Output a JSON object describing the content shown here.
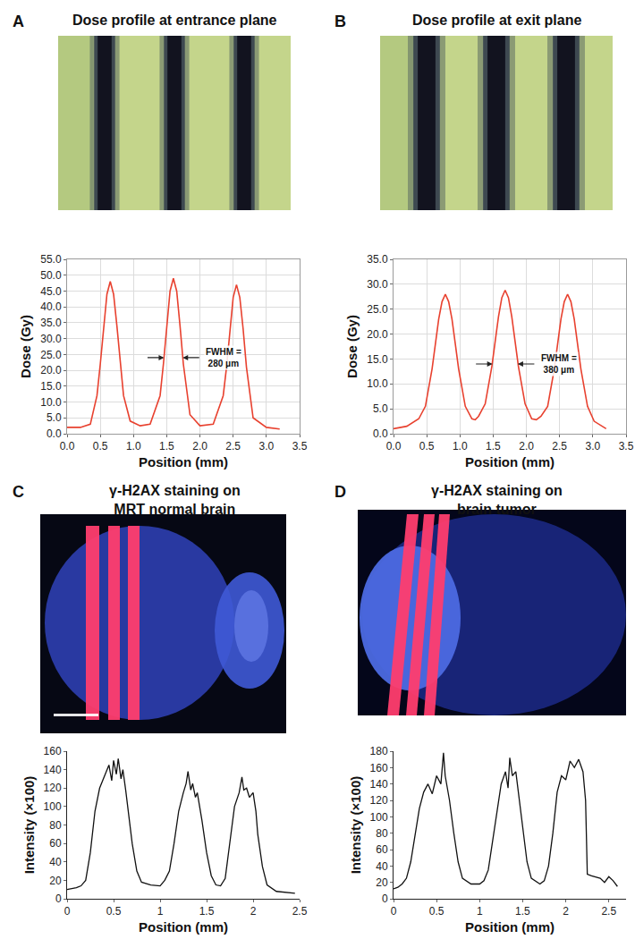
{
  "chart_data": [
    {
      "label": "A",
      "title": [
        "Dose profile at entrance plane"
      ],
      "type": "line",
      "color": "#e8412f",
      "grid": true,
      "xlabel": "Position (mm)",
      "ylabel": "Dose (Gy)",
      "x": [
        0,
        0.2,
        0.35,
        0.45,
        0.5,
        0.55,
        0.6,
        0.65,
        0.7,
        0.75,
        0.8,
        0.85,
        0.95,
        1.1,
        1.25,
        1.4,
        1.45,
        1.5,
        1.55,
        1.6,
        1.65,
        1.7,
        1.75,
        1.85,
        2.0,
        2.2,
        2.35,
        2.4,
        2.45,
        2.5,
        2.55,
        2.6,
        2.65,
        2.7,
        2.8,
        3.0,
        3.2
      ],
      "values": [
        2,
        2,
        3,
        12,
        22,
        34,
        44,
        48,
        44,
        34,
        22,
        12,
        4,
        2.5,
        3,
        12,
        22,
        34,
        45,
        49,
        45,
        34,
        22,
        6,
        2.5,
        3,
        12,
        21,
        33,
        43,
        47,
        43,
        33,
        21,
        5,
        2,
        1.5
      ],
      "xlim": [
        0,
        3.5
      ],
      "xticks": [
        {
          "value": 0,
          "label": "0.0"
        },
        0.5,
        {
          "value": 1,
          "label": "1.0"
        },
        1.5,
        {
          "value": 2,
          "label": "2.0"
        },
        2.5,
        {
          "value": 3,
          "label": "3.0"
        },
        3.5
      ],
      "ylim": [
        0,
        55
      ],
      "yticks": [
        {
          "value": 0,
          "label": "0.0"
        },
        {
          "value": 5,
          "label": "5.0"
        },
        {
          "value": 10,
          "label": "10.0"
        },
        {
          "value": 15,
          "label": "15.0"
        },
        {
          "value": 20,
          "label": "20.0"
        },
        {
          "value": 25,
          "label": "25.0"
        },
        {
          "value": 30,
          "label": "30.0"
        },
        {
          "value": 35,
          "label": "35.0"
        },
        {
          "value": 40,
          "label": "40.0"
        },
        {
          "value": 45,
          "label": "45.0"
        },
        {
          "value": 50,
          "label": "50.0"
        },
        {
          "value": 55,
          "label": "55.0"
        }
      ],
      "annotations": [
        {
          "text": [
            "FWHM =",
            "280 μm"
          ],
          "x": [
            1.46,
            1.74
          ],
          "y": 24
        }
      ]
    },
    {
      "label": "B",
      "title": [
        "Dose profile at exit plane"
      ],
      "type": "line",
      "color": "#e8412f",
      "grid": true,
      "xlabel": "Position (mm)",
      "ylabel": "Dose (Gy)",
      "x": [
        0,
        0.2,
        0.38,
        0.48,
        0.58,
        0.63,
        0.68,
        0.73,
        0.78,
        0.83,
        0.88,
        0.93,
        0.98,
        1.08,
        1.18,
        1.23,
        1.28,
        1.38,
        1.48,
        1.53,
        1.58,
        1.63,
        1.68,
        1.73,
        1.78,
        1.83,
        1.88,
        1.98,
        2.08,
        2.15,
        2.22,
        2.32,
        2.42,
        2.47,
        2.52,
        2.57,
        2.62,
        2.67,
        2.72,
        2.77,
        2.82,
        2.92,
        3.02,
        3.2
      ],
      "values": [
        1,
        1.5,
        3,
        5.5,
        13,
        18,
        23,
        26.5,
        28,
        26.5,
        23,
        18,
        13,
        5.5,
        3,
        2.8,
        3.5,
        6,
        13.5,
        18.5,
        23.5,
        27.3,
        28.8,
        27.3,
        23.5,
        18.5,
        13.5,
        6,
        3,
        2.8,
        3.5,
        5.5,
        13,
        18,
        23,
        26.5,
        28,
        26.5,
        23,
        18,
        13,
        5.5,
        2.5,
        1
      ],
      "xlim": [
        0,
        3.5
      ],
      "xticks": [
        {
          "value": 0,
          "label": "0.0"
        },
        0.5,
        {
          "value": 1,
          "label": "1.0"
        },
        1.5,
        {
          "value": 2,
          "label": "2.0"
        },
        2.5,
        {
          "value": 3,
          "label": "3.0"
        },
        3.5
      ],
      "ylim": [
        0,
        35
      ],
      "yticks": [
        {
          "value": 0,
          "label": "0.0"
        },
        {
          "value": 5,
          "label": "5.0"
        },
        {
          "value": 10,
          "label": "10.0"
        },
        {
          "value": 15,
          "label": "15.0"
        },
        {
          "value": 20,
          "label": "20.0"
        },
        {
          "value": 25,
          "label": "25.0"
        },
        {
          "value": 30,
          "label": "30.0"
        },
        {
          "value": 35,
          "label": "35.0"
        }
      ],
      "annotations": [
        {
          "text": [
            "FWHM =",
            "380 μm"
          ],
          "x": [
            1.49,
            1.87
          ],
          "y": 14
        }
      ]
    },
    {
      "label": "C",
      "title": [
        "γ-H2AX staining on",
        "MRT normal brain"
      ],
      "type": "line",
      "color": "#111111",
      "grid": false,
      "xlabel": "Position (mm)",
      "ylabel": "Intensity (×100)",
      "x": [
        0,
        0.05,
        0.1,
        0.15,
        0.2,
        0.25,
        0.3,
        0.35,
        0.4,
        0.45,
        0.48,
        0.5,
        0.53,
        0.55,
        0.58,
        0.6,
        0.63,
        0.65,
        0.7,
        0.75,
        0.8,
        0.9,
        1.0,
        1.05,
        1.1,
        1.15,
        1.2,
        1.25,
        1.28,
        1.3,
        1.33,
        1.35,
        1.38,
        1.4,
        1.45,
        1.5,
        1.55,
        1.6,
        1.65,
        1.7,
        1.75,
        1.8,
        1.85,
        1.88,
        1.9,
        1.93,
        1.96,
        2.0,
        2.03,
        2.05,
        2.1,
        2.15,
        2.25,
        2.35,
        2.45
      ],
      "values": [
        10,
        11,
        12,
        14,
        20,
        50,
        95,
        120,
        132,
        145,
        128,
        150,
        135,
        152,
        130,
        140,
        118,
        100,
        60,
        30,
        18,
        15,
        14,
        20,
        30,
        60,
        95,
        115,
        125,
        138,
        118,
        125,
        110,
        115,
        85,
        50,
        25,
        15,
        14,
        22,
        60,
        100,
        115,
        132,
        118,
        120,
        110,
        115,
        95,
        70,
        35,
        15,
        8,
        7,
        6
      ],
      "xlim": [
        0,
        2.5
      ],
      "xticks": [
        0,
        0.5,
        1,
        1.5,
        2,
        2.5
      ],
      "ylim": [
        0,
        160
      ],
      "yticks": [
        0,
        20,
        40,
        60,
        80,
        100,
        120,
        140,
        160
      ]
    },
    {
      "label": "D",
      "title": [
        "γ-H2AX staining on",
        "brain tumor"
      ],
      "type": "line",
      "color": "#111111",
      "grid": false,
      "xlabel": "Position (mm)",
      "ylabel": "Intensity (×100)",
      "x": [
        0,
        0.05,
        0.1,
        0.15,
        0.2,
        0.25,
        0.3,
        0.35,
        0.4,
        0.45,
        0.5,
        0.55,
        0.58,
        0.6,
        0.65,
        0.7,
        0.75,
        0.8,
        0.9,
        1.0,
        1.05,
        1.1,
        1.15,
        1.2,
        1.25,
        1.3,
        1.33,
        1.35,
        1.38,
        1.42,
        1.45,
        1.5,
        1.55,
        1.6,
        1.7,
        1.75,
        1.8,
        1.85,
        1.9,
        1.95,
        2.0,
        2.05,
        2.1,
        2.15,
        2.2,
        2.23,
        2.25,
        2.3,
        2.4,
        2.45,
        2.5,
        2.55,
        2.6
      ],
      "values": [
        12,
        14,
        18,
        25,
        45,
        80,
        110,
        130,
        140,
        128,
        150,
        140,
        178,
        150,
        120,
        80,
        45,
        25,
        18,
        18,
        22,
        35,
        70,
        110,
        140,
        155,
        135,
        172,
        150,
        155,
        130,
        90,
        45,
        25,
        18,
        22,
        40,
        80,
        130,
        150,
        145,
        168,
        160,
        170,
        155,
        120,
        30,
        28,
        25,
        20,
        27,
        22,
        15
      ],
      "xlim": [
        0,
        2.7
      ],
      "xticks": [
        0,
        0.5,
        1,
        1.5,
        2,
        2.5
      ],
      "ylim": [
        0,
        180
      ],
      "yticks": [
        0,
        20,
        40,
        60,
        80,
        100,
        120,
        140,
        160,
        180
      ]
    }
  ]
}
